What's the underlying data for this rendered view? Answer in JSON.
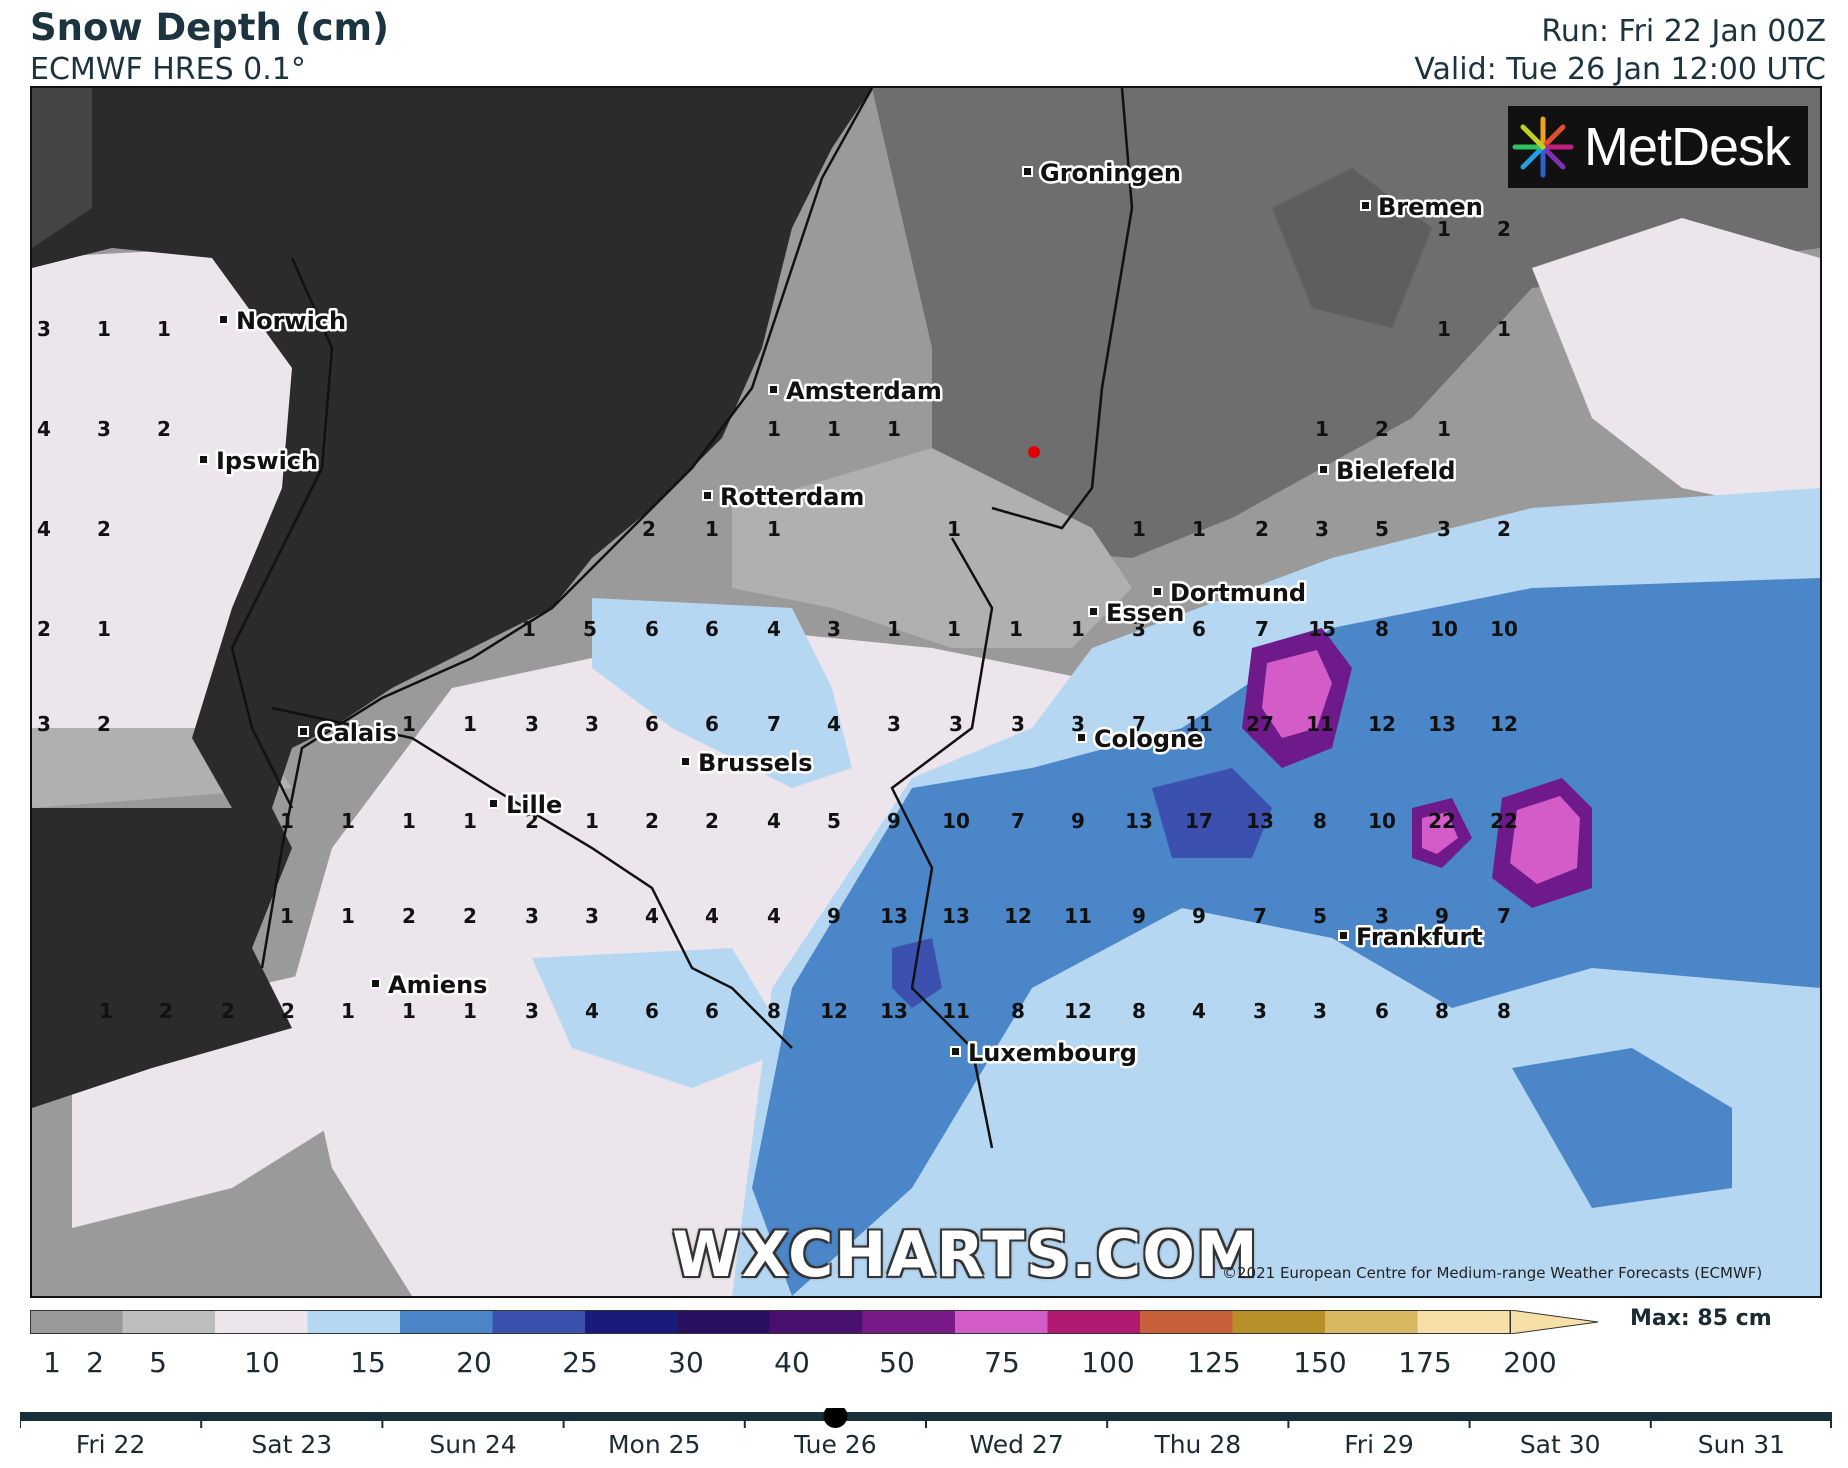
{
  "header": {
    "title": "Snow Depth (cm)",
    "subtitle": "ECMWF HRES 0.1°",
    "run": "Run: Fri 22 Jan 00Z",
    "valid": "Valid: Tue 26 Jan 12:00 UTC"
  },
  "branding": {
    "logo": "MetDesk",
    "watermark": "WXCHARTS.COM",
    "copyright": "©2021 European Centre for Medium-range Weather Forecasts (ECMWF)"
  },
  "colors": {
    "sea": "#2b2b2b",
    "grey_dark": "#6e6e6e",
    "grey_mid": "#8f8f8f",
    "grey_light": "#adadad",
    "snow_2_5": "#ece6ec",
    "snow_5_10": "#b6d7f2",
    "snow_10_15": "#4b86c8",
    "snow_15_20": "#3c50b0",
    "snow_25_plus": "#6e1a8a",
    "snow_40_50": "#d45cc8"
  },
  "cities": [
    {
      "name": "Groningen"
    },
    {
      "name": "Bremen"
    },
    {
      "name": "Norwich"
    },
    {
      "name": "Amsterdam"
    },
    {
      "name": "Ipswich"
    },
    {
      "name": "Rotterdam"
    },
    {
      "name": "Bielefeld"
    },
    {
      "name": "Dortmund"
    },
    {
      "name": "Essen"
    },
    {
      "name": "Calais"
    },
    {
      "name": "Cologne"
    },
    {
      "name": "Brussels"
    },
    {
      "name": "Lille"
    },
    {
      "name": "Frankfurt"
    },
    {
      "name": "Amiens"
    },
    {
      "name": "Luxembourg"
    }
  ],
  "value_grid": [
    [
      "1",
      "2"
    ],
    [
      "3",
      "1",
      "1",
      "1",
      "1"
    ],
    [
      "4",
      "3",
      "2",
      "1",
      "1",
      "1",
      "1",
      "2",
      "1"
    ],
    [
      "4",
      "2",
      "2",
      "1",
      "1",
      "1",
      "1",
      "1",
      "2",
      "3",
      "5",
      "3",
      "2"
    ],
    [
      "2",
      "1",
      "1",
      "5",
      "6",
      "6",
      "4",
      "3",
      "1",
      "1",
      "1",
      "1",
      "3",
      "6",
      "7",
      "15",
      "8",
      "10",
      "10"
    ],
    [
      "3",
      "2",
      "1",
      "1",
      "3",
      "3",
      "6",
      "6",
      "7",
      "4",
      "3",
      "3",
      "3",
      "3",
      "7",
      "11",
      "27",
      "11",
      "12",
      "13",
      "12"
    ],
    [
      "1",
      "1",
      "1",
      "1",
      "2",
      "1",
      "2",
      "2",
      "4",
      "5",
      "9",
      "10",
      "7",
      "9",
      "13",
      "17",
      "13",
      "8",
      "10",
      "22",
      "22"
    ],
    [
      "1",
      "1",
      "2",
      "2",
      "3",
      "3",
      "4",
      "4",
      "4",
      "9",
      "13",
      "13",
      "12",
      "11",
      "9",
      "9",
      "7",
      "5",
      "3",
      "9",
      "7"
    ],
    [
      "1",
      "2",
      "2",
      "2",
      "1",
      "1",
      "1",
      "3",
      "4",
      "6",
      "6",
      "8",
      "12",
      "13",
      "11",
      "8",
      "12",
      "8",
      "4",
      "3",
      "3",
      "6",
      "8",
      "8"
    ]
  ],
  "legend": {
    "labels": [
      "1",
      "2",
      "5",
      "10",
      "15",
      "20",
      "25",
      "30",
      "40",
      "50",
      "75",
      "100",
      "125",
      "150",
      "175",
      "200"
    ],
    "colors": [
      "#9a9a9a",
      "#bdbdbd",
      "#ece6ec",
      "#b6d7f2",
      "#4b86c8",
      "#3c50b0",
      "#1a1a7a",
      "#2a1060",
      "#4a1070",
      "#7a1a8a",
      "#d45cc8",
      "#b01a70",
      "#c8603a",
      "#b8902a",
      "#d8b860",
      "#f6e0a8"
    ],
    "max": "Max: 85 cm"
  },
  "timeline": {
    "days": [
      "Fri 22",
      "Sat 23",
      "Sun 24",
      "Mon 25",
      "Tue 26",
      "Wed 27",
      "Thu 28",
      "Fri 29",
      "Sat 30",
      "Sun 31"
    ],
    "selected_index": 4
  }
}
